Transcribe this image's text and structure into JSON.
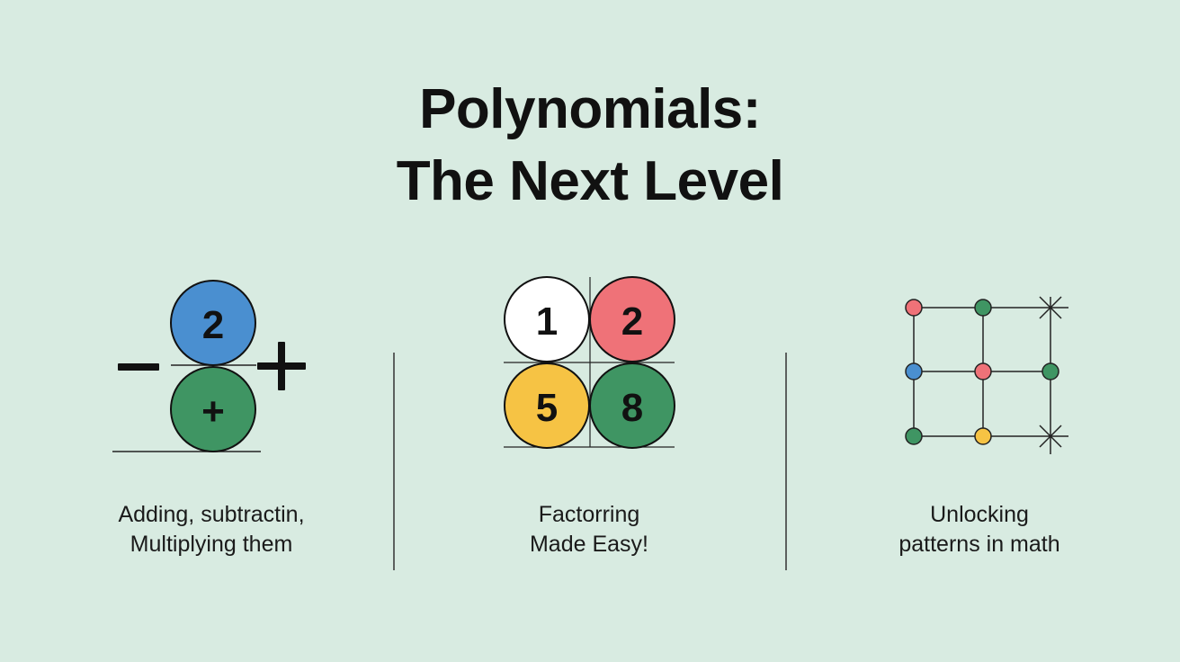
{
  "title": {
    "line1": "Polynomials:",
    "line2": "The Next Level"
  },
  "panels": [
    {
      "caption_line1": "Adding, subtractin,",
      "caption_line2": "Multiplying them",
      "circle_top_label": "2",
      "circle_bottom_label": "+"
    },
    {
      "caption_line1": "Factorring",
      "caption_line2": "Made Easy!",
      "cells": [
        "1",
        "2",
        "5",
        "8"
      ]
    },
    {
      "caption_line1": "Unlocking",
      "caption_line2": "patterns in math"
    }
  ],
  "colors": {
    "background": "#d8ebe1",
    "blue": "#4a8fd0",
    "green": "#3f9563",
    "red": "#ef7278",
    "yellow": "#f6c344",
    "white": "#ffffff"
  }
}
